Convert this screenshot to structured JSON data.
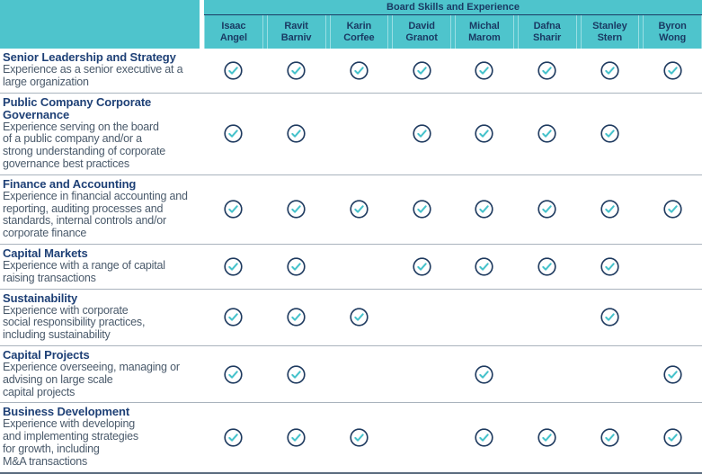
{
  "table": {
    "group_header": "Board Skills and Experience",
    "members": [
      "Isaac\nAngel",
      "Ravit\nBarniv",
      "Karin\nCorfee",
      "David\nGranot",
      "Michal\nMarom",
      "Dafna\nSharir",
      "Stanley\nStern",
      "Byron\nWong"
    ],
    "rows": [
      {
        "title": "Senior Leadership and Strategy",
        "description": "Experience as a senior executive at a\nlarge organization",
        "checks": [
          true,
          true,
          true,
          true,
          true,
          true,
          true,
          true
        ]
      },
      {
        "title": "Public Company Corporate\nGovernance",
        "description": "Experience serving on the board\nof a public company and/or a\nstrong understanding of corporate\ngovernance best practices",
        "checks": [
          true,
          true,
          false,
          true,
          true,
          true,
          true,
          false
        ]
      },
      {
        "title": "Finance and Accounting",
        "description": "Experience in financial accounting and\nreporting, auditing processes and\nstandards, internal controls and/or\ncorporate finance",
        "checks": [
          true,
          true,
          true,
          true,
          true,
          true,
          true,
          true
        ]
      },
      {
        "title": "Capital Markets",
        "description": "Experience with a range of capital\nraising transactions",
        "checks": [
          true,
          true,
          false,
          true,
          true,
          true,
          true,
          false
        ]
      },
      {
        "title": "Sustainability",
        "description": "Experience with corporate\nsocial responsibility practices,\nincluding sustainability",
        "checks": [
          true,
          true,
          true,
          false,
          false,
          false,
          true,
          false
        ]
      },
      {
        "title": "Capital Projects",
        "description": "Experience overseeing, managing or\nadvising on large scale\ncapital projects",
        "checks": [
          true,
          true,
          false,
          false,
          true,
          false,
          false,
          true
        ]
      },
      {
        "title": "Business Development",
        "description": "Experience with developing\nand implementing strategies\nfor growth, including\nM&A transactions",
        "checks": [
          true,
          true,
          true,
          false,
          true,
          true,
          true,
          true
        ]
      }
    ]
  },
  "icons": {
    "check": "check-circle-icon"
  },
  "colors": {
    "header_bg": "#4EC4CC",
    "header_text": "#1A3A63",
    "header_divider": "#9ADEE3",
    "header_underline": "#1B3A63",
    "title_text": "#1E4076",
    "body_text": "#4A5A6B",
    "row_divider": "#A9B3BD",
    "bottom_border": "#5A6B7E",
    "check_ring": "#1E3A5F",
    "check_mark": "#45C2CB"
  }
}
